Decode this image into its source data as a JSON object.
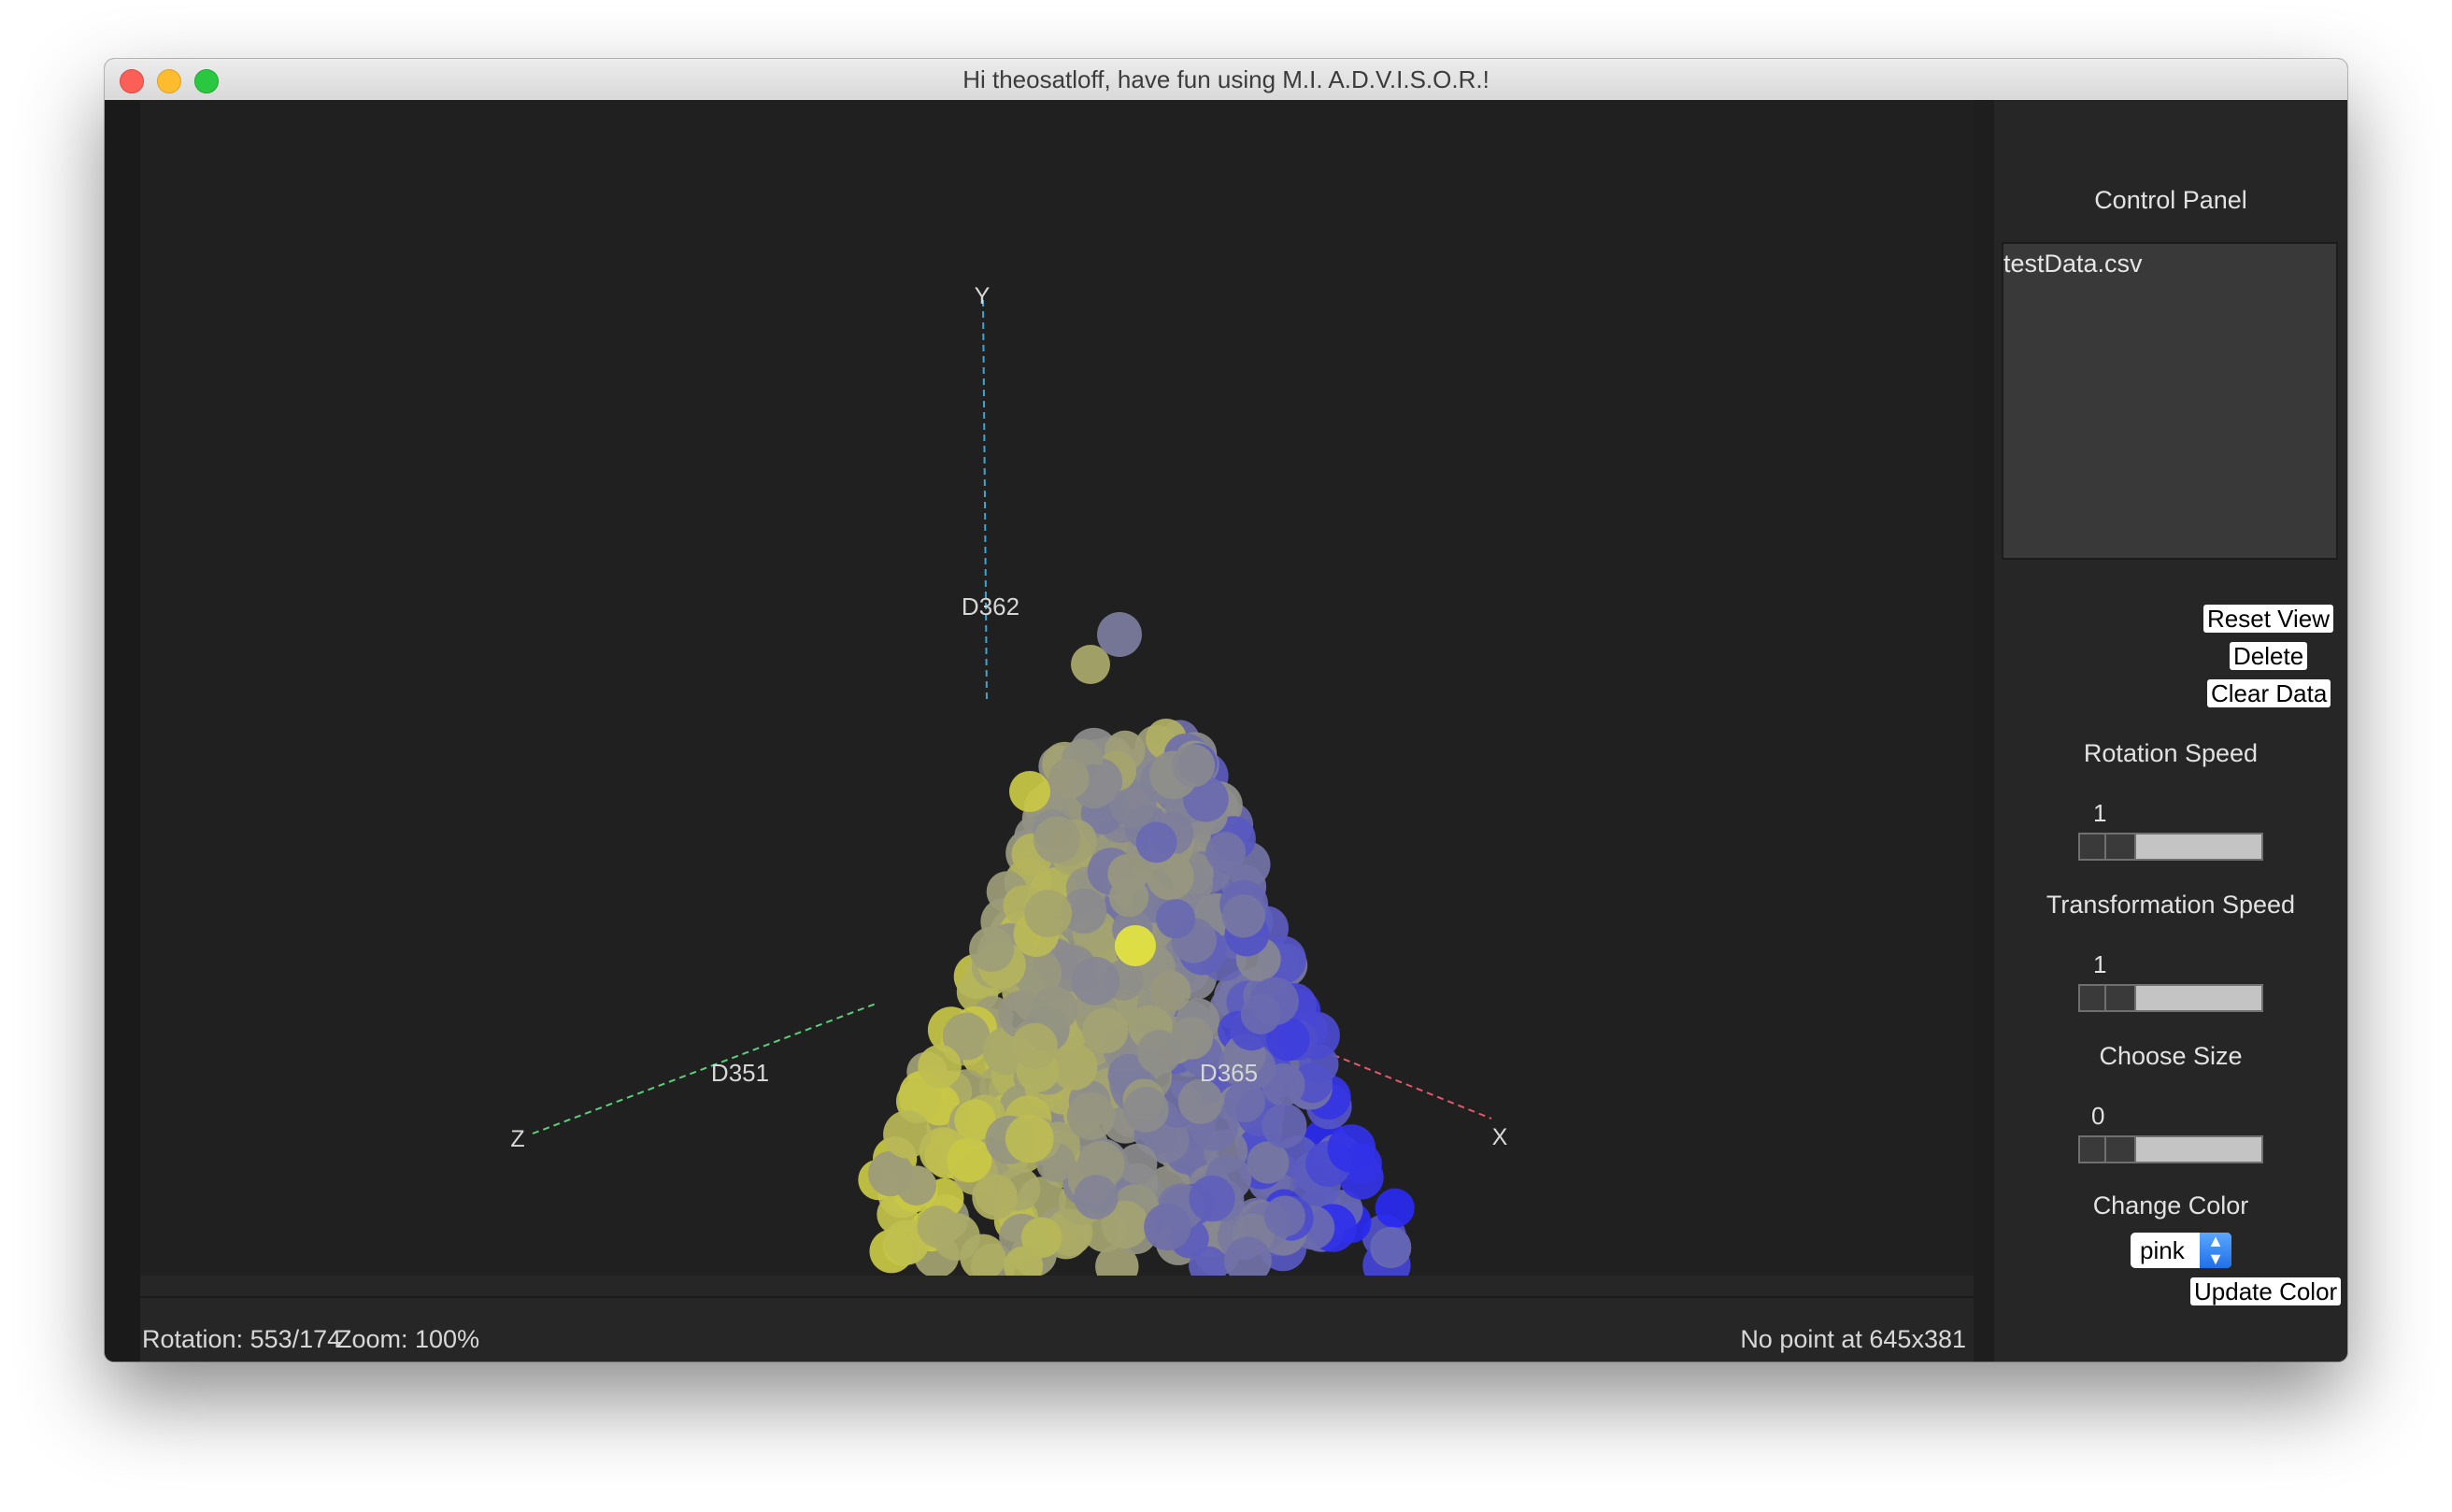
{
  "window": {
    "title": "Hi theosatloff, have fun using M.I. A.D.V.I.S.O.R.!"
  },
  "plot": {
    "axes": {
      "x": "X",
      "y": "Y",
      "z": "Z"
    },
    "dimension_labels": {
      "y": "D362",
      "z": "D351",
      "x": "D365"
    },
    "colors": {
      "yellow": "#c9c845",
      "gray": "#8a8a8f",
      "blue": "#2a2af0",
      "x_axis": "#e05a6a",
      "y_axis": "#3aa6d6",
      "z_axis": "#5ad07a"
    }
  },
  "status": {
    "rotation": "Rotation: 553/174",
    "zoom": "Zoom: 100%",
    "point_info": "No point at 645x381"
  },
  "control_panel": {
    "title": "Control Panel",
    "files": [
      "testData.csv"
    ],
    "buttons": {
      "reset_view": "Reset View",
      "delete": "Delete",
      "clear_data": "Clear Data",
      "update_color": "Update Color"
    },
    "rotation_speed": {
      "label": "Rotation Speed",
      "value": "1"
    },
    "transformation_speed": {
      "label": "Transformation Speed",
      "value": "1"
    },
    "choose_size": {
      "label": "Choose Size",
      "value": "0"
    },
    "change_color": {
      "label": "Change Color",
      "selected": "pink"
    }
  }
}
